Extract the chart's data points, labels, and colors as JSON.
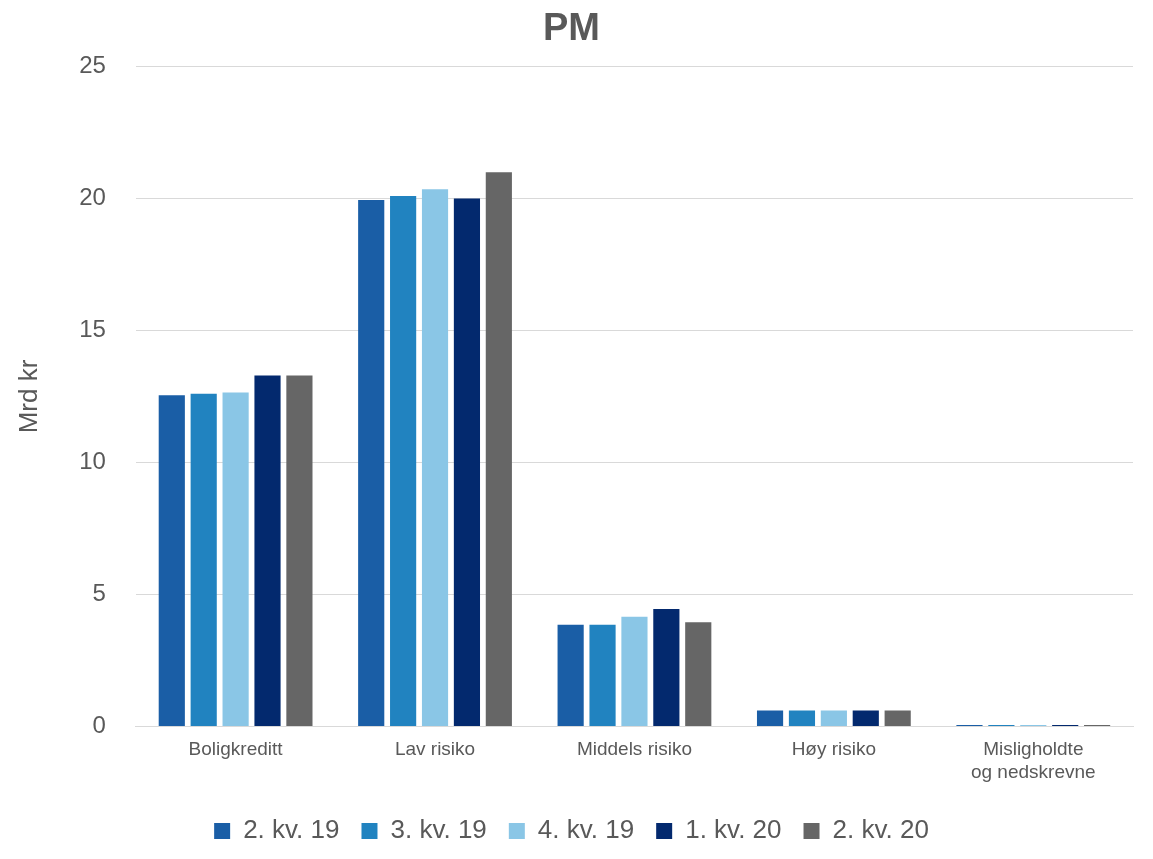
{
  "chart_data": {
    "type": "bar",
    "title": "PM",
    "ylabel": "Mrd kr",
    "categories": [
      "Boligkreditt",
      "Lav risiko",
      "Middels risiko",
      "Høy risiko",
      "Misligholdte og nedskrevne"
    ],
    "series": [
      {
        "name": "2. kv. 19",
        "color": "#1a5ea6",
        "values": [
          12.55,
          19.95,
          3.85,
          0.6,
          0.05
        ]
      },
      {
        "name": "3. kv. 19",
        "color": "#2183c0",
        "values": [
          12.6,
          20.1,
          3.85,
          0.6,
          0.05
        ]
      },
      {
        "name": "4. kv. 19",
        "color": "#8ac6e6",
        "values": [
          12.65,
          20.35,
          4.15,
          0.6,
          0.05
        ]
      },
      {
        "name": "1. kv. 20",
        "color": "#03296e",
        "values": [
          13.3,
          20,
          4.45,
          0.6,
          0.05
        ]
      },
      {
        "name": "2. kv. 20",
        "color": "#666666",
        "values": [
          13.3,
          21,
          3.95,
          0.6,
          0.05
        ]
      }
    ],
    "ylim": [
      0,
      25
    ],
    "yticks": [
      0,
      5,
      10,
      15,
      20,
      25
    ],
    "grid": "y",
    "legend": "bottom"
  }
}
